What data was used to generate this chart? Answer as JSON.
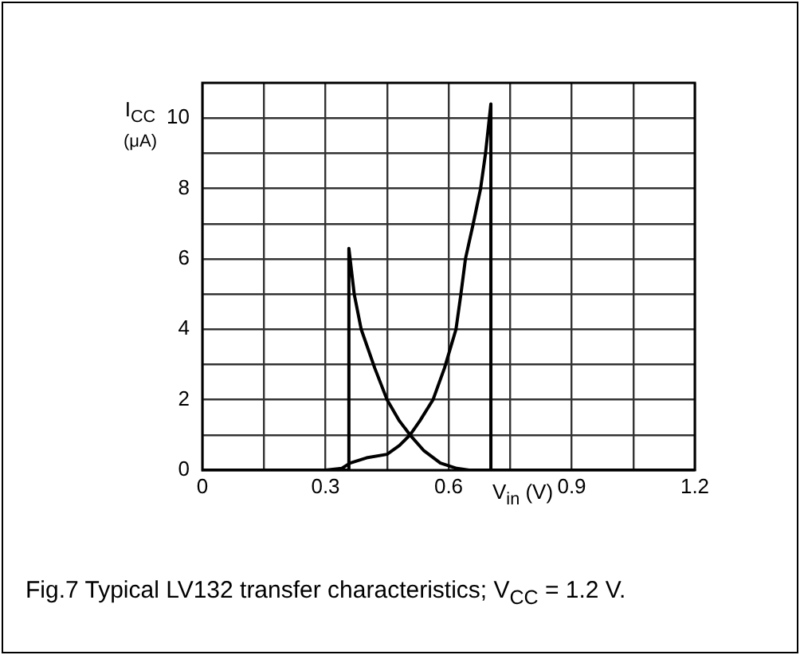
{
  "chart_data": {
    "type": "line",
    "xlabel": "V$_{in}$ (V)",
    "ylabel": "I$_{CC}$ (μA)",
    "annotations": [
      "Fig.7 Typical LV132 transfer characteristics; V$_{CC}$ = 1.2 V."
    ],
    "series": [
      {
        "color": "#000000",
        "x": [
          0,
          0.3,
          0.34,
          0.36,
          0.4,
          0.45,
          0.48,
          0.506,
          0.53,
          0.562,
          0.59,
          0.618,
          0.63,
          0.641,
          0.66,
          0.678,
          0.69,
          0.703,
          0.703,
          1.2
        ],
        "values": [
          0,
          0,
          0.05,
          0.2,
          0.35,
          0.45,
          0.7,
          1,
          1.4,
          2,
          2.9,
          4,
          5,
          6,
          7,
          8,
          9,
          10.4,
          0,
          0
        ]
      },
      {
        "color": "#000000",
        "x": [
          0,
          0.357,
          0.357,
          0.37,
          0.387,
          0.42,
          0.45,
          0.48,
          0.506,
          0.54,
          0.58,
          0.62,
          0.65,
          1.2
        ],
        "values": [
          0,
          0,
          6.3,
          5,
          4,
          2.9,
          2,
          1.4,
          1,
          0.55,
          0.2,
          0.05,
          0,
          0
        ]
      }
    ],
    "xlim": [
      0,
      1.2
    ],
    "ylim": [
      0,
      11
    ],
    "xticks": [
      0,
      {
        "value": 0.15,
        "label": null
      },
      0.3,
      {
        "value": 0.45,
        "label": null
      },
      0.6,
      {
        "value": 0.75,
        "label": null
      },
      0.9,
      {
        "value": 1.05,
        "label": null
      },
      1.2
    ],
    "yticks": [
      0,
      {
        "value": 1,
        "label": null
      },
      2,
      {
        "value": 3,
        "label": null
      },
      4,
      {
        "value": 5,
        "label": null
      },
      6,
      {
        "value": 7,
        "label": null
      },
      8,
      {
        "value": 9,
        "label": null
      },
      10
    ],
    "grid": true,
    "marker": "none",
    "line_style": "solid"
  }
}
